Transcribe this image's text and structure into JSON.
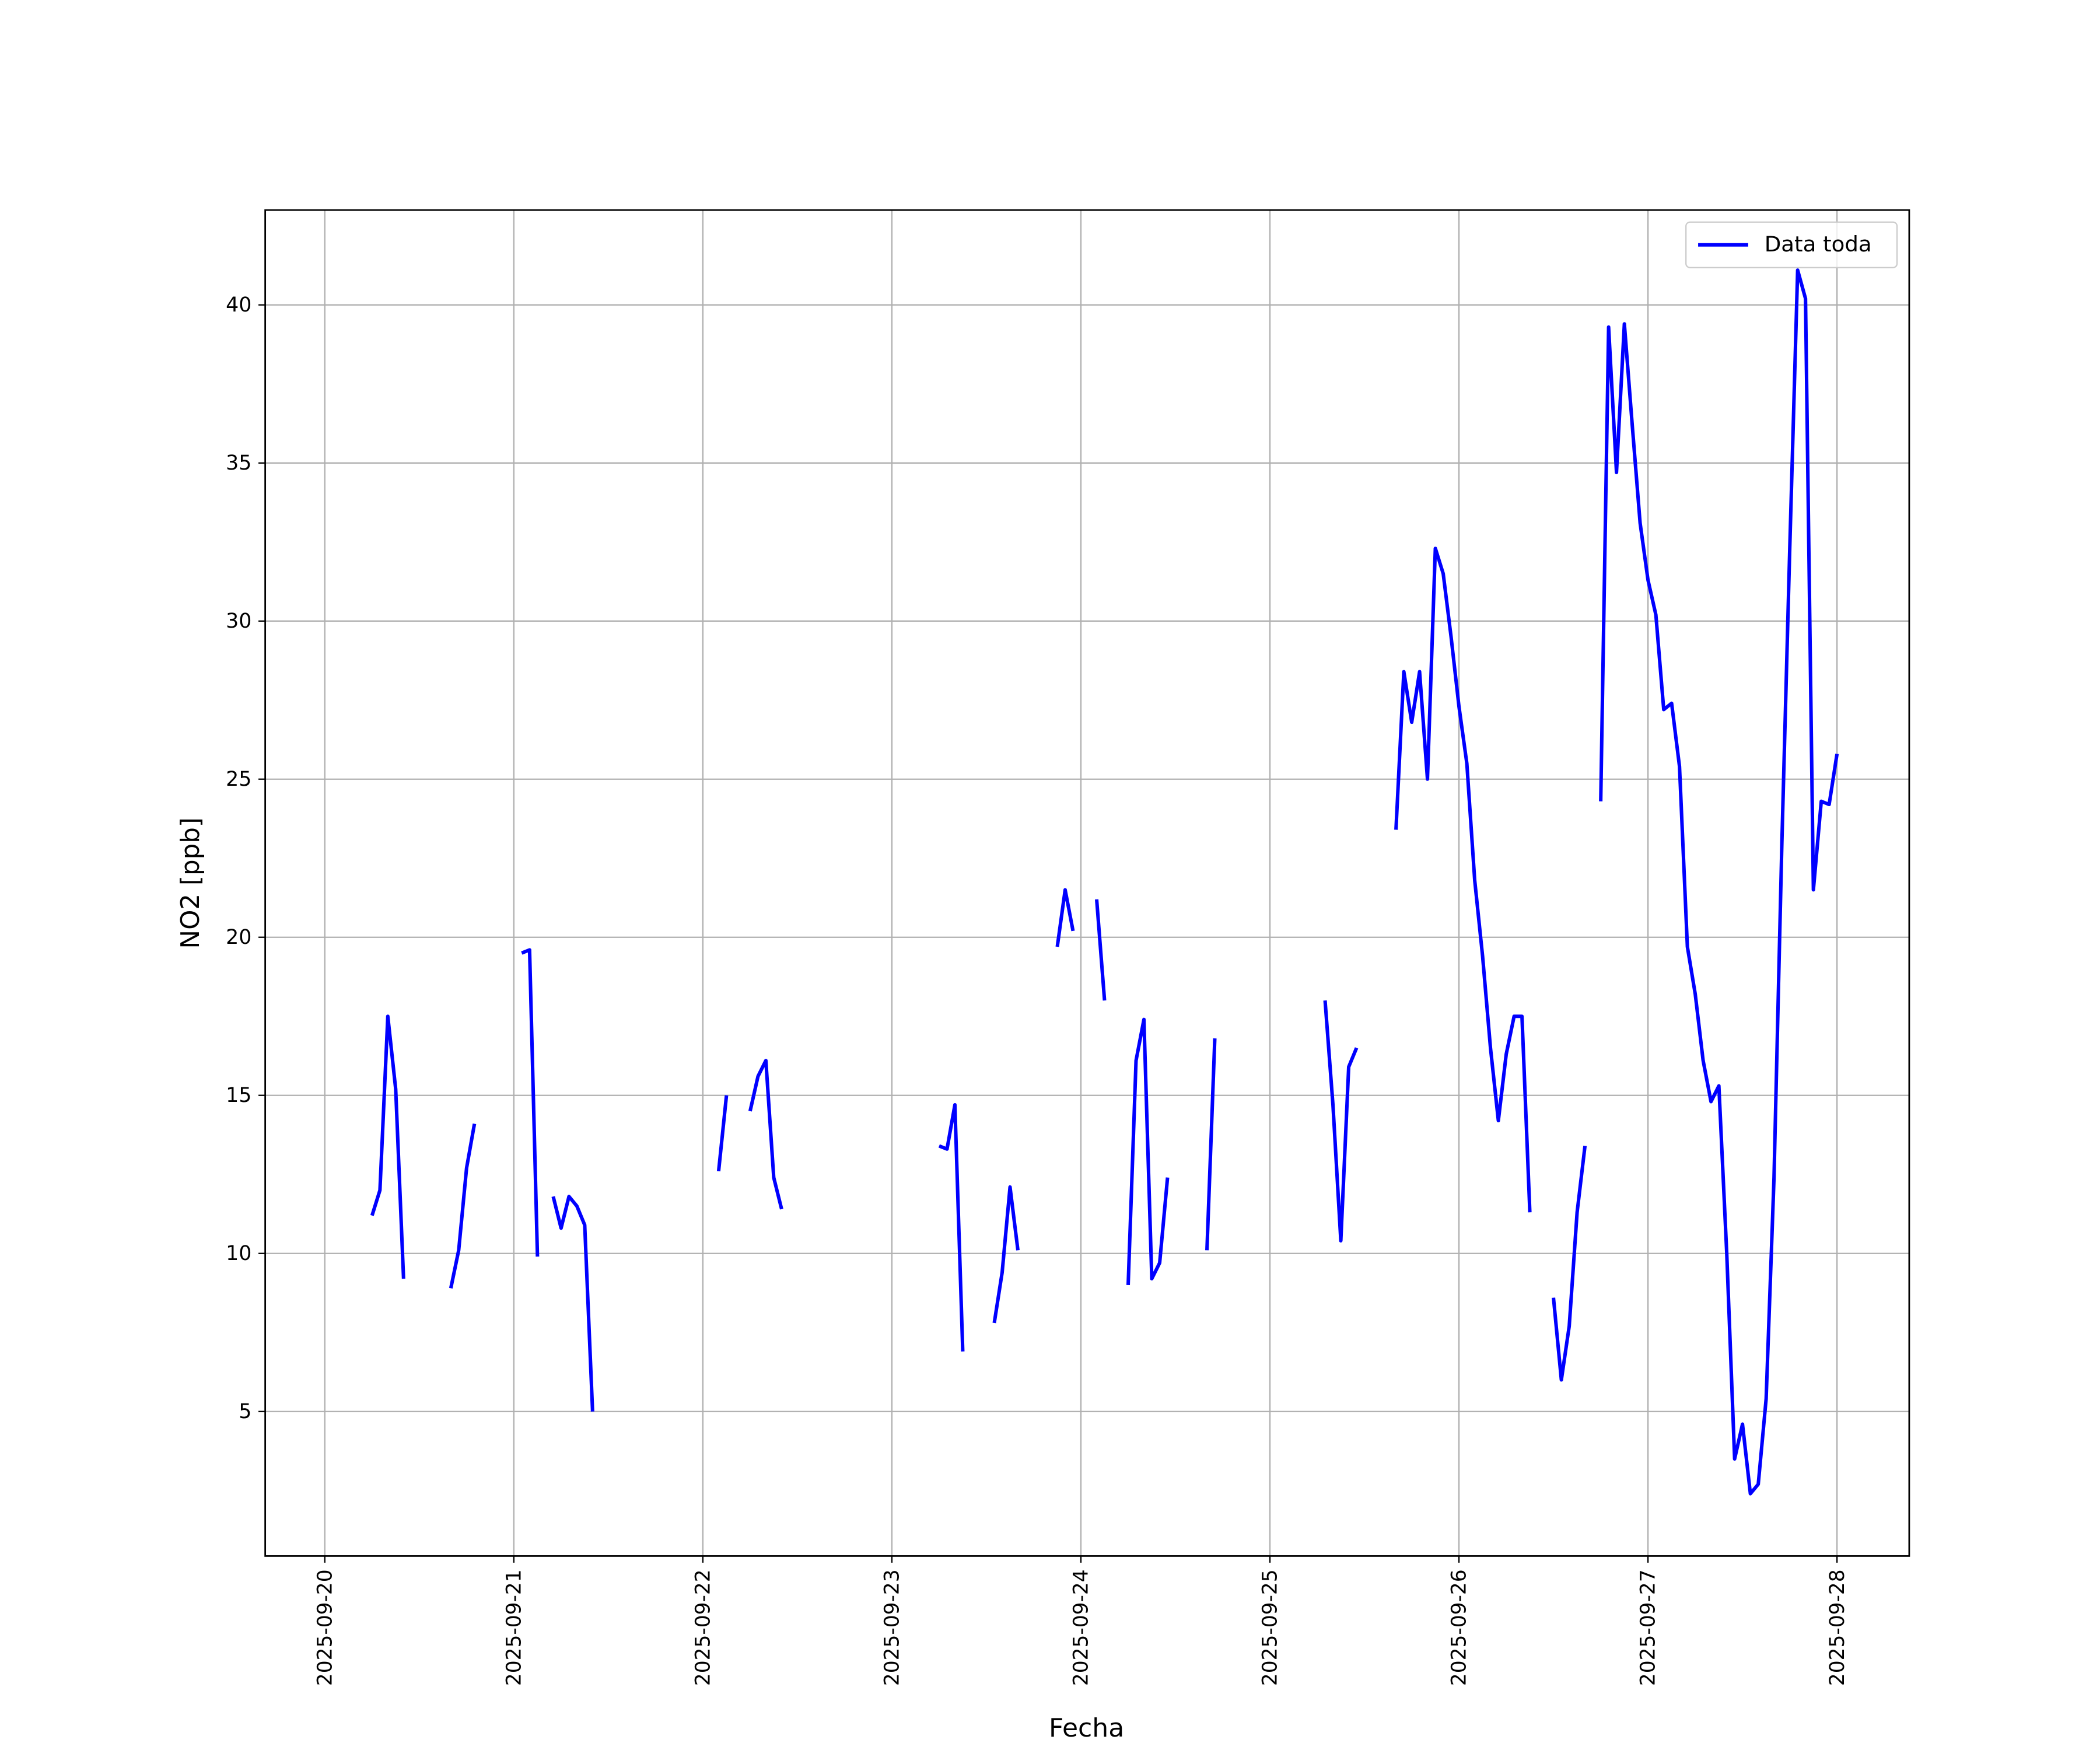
{
  "chart_data": {
    "type": "line",
    "xlabel": "Fecha",
    "ylabel": "NO2 [ppb]",
    "x": [
      "2025-09-20 06:00",
      "2025-09-20 07:00",
      "2025-09-20 08:00",
      "2025-09-20 09:00",
      "2025-09-20 10:00",
      "2025-09-20 11:00",
      "2025-09-20 16:00",
      "2025-09-20 17:00",
      "2025-09-20 18:00",
      "2025-09-20 19:00",
      "2025-09-20 20:00",
      "2025-09-21 01:00",
      "2025-09-21 02:00",
      "2025-09-21 03:00",
      "2025-09-21 04:00",
      "2025-09-21 05:00",
      "2025-09-21 06:00",
      "2025-09-21 07:00",
      "2025-09-21 08:00",
      "2025-09-21 09:00",
      "2025-09-21 10:00",
      "2025-09-21 11:00",
      "2025-09-22 02:00",
      "2025-09-22 03:00",
      "2025-09-22 04:00",
      "2025-09-22 06:00",
      "2025-09-22 07:00",
      "2025-09-22 08:00",
      "2025-09-22 09:00",
      "2025-09-22 10:00",
      "2025-09-22 11:00",
      "2025-09-23 06:00",
      "2025-09-23 07:00",
      "2025-09-23 08:00",
      "2025-09-23 09:00",
      "2025-09-23 10:00",
      "2025-09-23 13:00",
      "2025-09-23 14:00",
      "2025-09-23 15:00",
      "2025-09-23 16:00",
      "2025-09-23 17:00",
      "2025-09-23 21:00",
      "2025-09-23 22:00",
      "2025-09-23 23:00",
      "2025-09-24 00:00",
      "2025-09-24 02:00",
      "2025-09-24 03:00",
      "2025-09-24 04:00",
      "2025-09-24 06:00",
      "2025-09-24 07:00",
      "2025-09-24 08:00",
      "2025-09-24 09:00",
      "2025-09-24 10:00",
      "2025-09-24 11:00",
      "2025-09-24 12:00",
      "2025-09-24 16:00",
      "2025-09-24 17:00",
      "2025-09-24 18:00",
      "2025-09-25 07:00",
      "2025-09-25 08:00",
      "2025-09-25 09:00",
      "2025-09-25 10:00",
      "2025-09-25 11:00",
      "2025-09-25 12:00",
      "2025-09-25 16:00",
      "2025-09-25 17:00",
      "2025-09-25 18:00",
      "2025-09-25 19:00",
      "2025-09-25 20:00",
      "2025-09-25 21:00",
      "2025-09-25 22:00",
      "2025-09-25 23:00",
      "2025-09-26 00:00",
      "2025-09-26 01:00",
      "2025-09-26 02:00",
      "2025-09-26 03:00",
      "2025-09-26 04:00",
      "2025-09-26 05:00",
      "2025-09-26 06:00",
      "2025-09-26 07:00",
      "2025-09-26 08:00",
      "2025-09-26 09:00",
      "2025-09-26 10:00",
      "2025-09-26 12:00",
      "2025-09-26 13:00",
      "2025-09-26 14:00",
      "2025-09-26 15:00",
      "2025-09-26 16:00",
      "2025-09-26 17:00",
      "2025-09-26 18:00",
      "2025-09-26 19:00",
      "2025-09-26 20:00",
      "2025-09-26 21:00",
      "2025-09-26 22:00",
      "2025-09-26 23:00",
      "2025-09-27 00:00",
      "2025-09-27 01:00",
      "2025-09-27 02:00",
      "2025-09-27 03:00",
      "2025-09-27 04:00",
      "2025-09-27 05:00",
      "2025-09-27 06:00",
      "2025-09-27 07:00",
      "2025-09-27 08:00",
      "2025-09-27 09:00",
      "2025-09-27 10:00",
      "2025-09-27 11:00",
      "2025-09-27 12:00",
      "2025-09-27 13:00",
      "2025-09-27 14:00",
      "2025-09-27 15:00",
      "2025-09-27 16:00",
      "2025-09-27 17:00",
      "2025-09-27 18:00",
      "2025-09-27 19:00",
      "2025-09-27 20:00",
      "2025-09-27 21:00",
      "2025-09-27 22:00",
      "2025-09-27 23:00",
      "2025-09-28 00:00"
    ],
    "series": [
      {
        "name": "Data toda",
        "color": "#0000ff",
        "values": [
          11.2,
          12.0,
          17.5,
          15.2,
          9.2,
          null,
          8.9,
          10.1,
          12.7,
          14.1,
          null,
          19.5,
          19.6,
          9.9,
          null,
          11.8,
          10.8,
          11.8,
          11.5,
          10.9,
          5.0,
          null,
          12.6,
          15.0,
          null,
          14.5,
          15.6,
          16.1,
          12.4,
          11.4,
          null,
          13.4,
          13.3,
          14.7,
          6.9,
          null,
          7.8,
          9.4,
          12.1,
          10.1,
          null,
          19.7,
          21.5,
          20.2,
          null,
          21.2,
          18.0,
          null,
          9.0,
          16.1,
          17.4,
          9.2,
          9.7,
          12.4,
          null,
          10.1,
          16.8,
          null,
          18.0,
          14.7,
          10.4,
          15.9,
          16.5,
          null,
          23.4,
          28.4,
          26.8,
          28.4,
          25.0,
          32.3,
          31.5,
          29.5,
          27.3,
          25.5,
          21.8,
          19.4,
          16.5,
          14.2,
          16.3,
          17.5,
          17.5,
          11.3,
          null,
          8.6,
          6.0,
          7.7,
          11.3,
          13.4,
          null,
          24.3,
          39.3,
          34.7,
          39.4,
          36.2,
          33.1,
          31.3,
          30.2,
          27.2,
          27.4,
          25.4,
          19.7,
          18.2,
          16.1,
          14.8,
          15.3,
          10.0,
          3.5,
          4.6,
          2.4,
          2.7,
          5.4,
          12.4,
          23.0,
          32.3,
          41.1,
          40.2,
          21.5,
          24.3,
          24.2,
          25.8
        ]
      }
    ],
    "xlim": [
      "2025-09-19 16:26",
      "2025-09-28 09:10"
    ],
    "xticks": [
      "2025-09-20",
      "2025-09-21",
      "2025-09-22",
      "2025-09-23",
      "2025-09-24",
      "2025-09-25",
      "2025-09-26",
      "2025-09-27",
      "2025-09-28"
    ],
    "ylim": [
      0.43,
      43.0
    ],
    "yticks": [
      5,
      10,
      15,
      20,
      25,
      30,
      35,
      40
    ],
    "grid": true,
    "legend": "upper right"
  }
}
